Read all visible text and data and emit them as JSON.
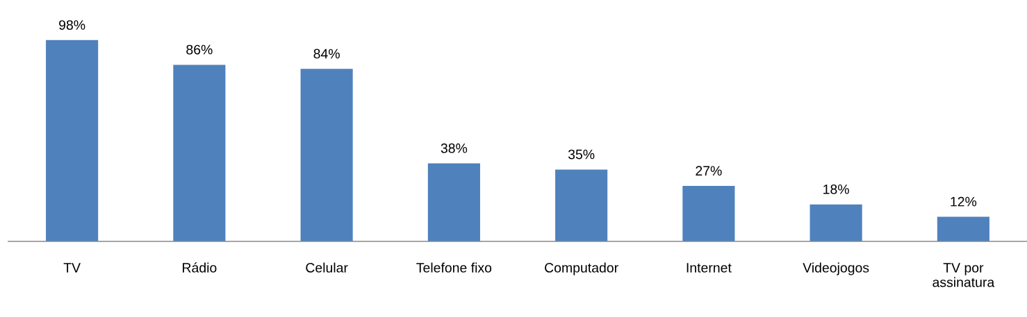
{
  "chart_data": {
    "type": "bar",
    "categories": [
      "TV",
      "Rádio",
      "Celular",
      "Telefone fixo",
      "Computador",
      "Internet",
      "Videojogos",
      "TV por assinatura"
    ],
    "values": [
      98,
      86,
      84,
      38,
      35,
      27,
      18,
      12
    ],
    "value_labels": [
      "98%",
      "86%",
      "84%",
      "38%",
      "35%",
      "27%",
      "18%",
      "12%"
    ],
    "color": "#4f81bd",
    "grid": false,
    "legend": false
  }
}
